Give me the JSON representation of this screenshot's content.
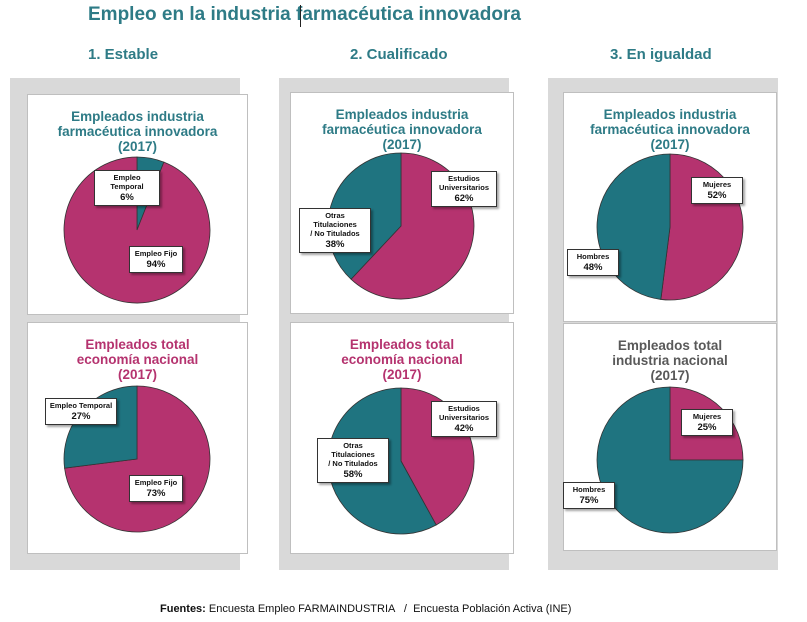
{
  "title": "Empleo en la industria farmacéutica innovadora",
  "columns": [
    "1. Estable",
    "2. Cualificado",
    "3. En igualdad"
  ],
  "colors": {
    "magenta": "#b5336f",
    "teal": "#1f7480",
    "heading_teal": "#2e7b86",
    "heading_grey": "#595959"
  },
  "footer": {
    "label": "Fuentes:",
    "text": " Encuesta Empleo FARMAINDUSTRIA   /  Encuesta Población Activa (INE)"
  },
  "chart_data": [
    {
      "type": "pie",
      "title": "Empleados industria farmacéutica innovadora (2017)",
      "title_lines": [
        "Empleados industria",
        "farmacéutica innovadora",
        "(2017)"
      ],
      "slices": [
        {
          "label": "Empleo Temporal",
          "value": 6,
          "display": "6%",
          "color": "#1f7480"
        },
        {
          "label": "Empleo Fijo",
          "value": 94,
          "display": "94%",
          "color": "#b5336f"
        }
      ]
    },
    {
      "type": "pie",
      "title": "Empleados total economía nacional (2017)",
      "title_lines": [
        "Empleados total",
        "economía nacional",
        "(2017)"
      ],
      "slices": [
        {
          "label": "Empleo Fijo",
          "value": 73,
          "display": "73%",
          "color": "#b5336f"
        },
        {
          "label": "Empleo Temporal",
          "value": 27,
          "display": "27%",
          "color": "#1f7480"
        }
      ]
    },
    {
      "type": "pie",
      "title": "Empleados industria farmacéutica innovadora (2017)",
      "title_lines": [
        "Empleados industria",
        "farmacéutica innovadora",
        "(2017)"
      ],
      "slices": [
        {
          "label": "Estudios Universitarios",
          "label_lines": [
            "Estudios",
            "Universitarios"
          ],
          "value": 62,
          "display": "62%",
          "color": "#b5336f"
        },
        {
          "label": "Otras Titulaciones / No Titulados",
          "label_lines": [
            "Otras Titulaciones",
            "/ No Titulados"
          ],
          "value": 38,
          "display": "38%",
          "color": "#1f7480"
        }
      ]
    },
    {
      "type": "pie",
      "title": "Empleados total economía nacional (2017)",
      "title_lines": [
        "Empleados total",
        "economía nacional",
        "(2017)"
      ],
      "slices": [
        {
          "label": "Estudios Universitarios",
          "label_lines": [
            "Estudios",
            "Universitarios"
          ],
          "value": 42,
          "display": "42%",
          "color": "#b5336f"
        },
        {
          "label": "Otras Titulaciones / No Titulados",
          "label_lines": [
            "Otras Titulaciones",
            "/ No Titulados"
          ],
          "value": 58,
          "display": "58%",
          "color": "#1f7480"
        }
      ]
    },
    {
      "type": "pie",
      "title": "Empleados industria farmacéutica innovadora (2017)",
      "title_lines": [
        "Empleados industria",
        "farmacéutica innovadora",
        "(2017)"
      ],
      "slices": [
        {
          "label": "Mujeres",
          "value": 52,
          "display": "52%",
          "color": "#b5336f"
        },
        {
          "label": "Hombres",
          "value": 48,
          "display": "48%",
          "color": "#1f7480"
        }
      ]
    },
    {
      "type": "pie",
      "title": "Empleados total industria nacional (2017)",
      "title_lines": [
        "Empleados total",
        "industria nacional",
        "(2017)"
      ],
      "slices": [
        {
          "label": "Mujeres",
          "value": 25,
          "display": "25%",
          "color": "#b5336f"
        },
        {
          "label": "Hombres",
          "value": 75,
          "display": "75%",
          "color": "#1f7480"
        }
      ]
    }
  ]
}
